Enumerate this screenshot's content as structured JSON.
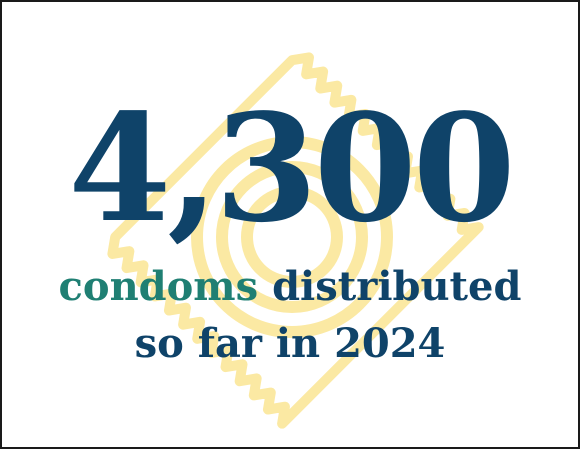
{
  "stat": {
    "number": "4,300",
    "accent_word": "condoms",
    "line1_rest": "distributed",
    "line2": "so far in 2024"
  },
  "decoration": {
    "icon": "condom-wrapper-icon"
  },
  "colors": {
    "number": "#0f4369",
    "accent": "#1f7f73",
    "icon": "#fbe9a3",
    "border": "#1a1a1a",
    "background": "#ffffff"
  }
}
